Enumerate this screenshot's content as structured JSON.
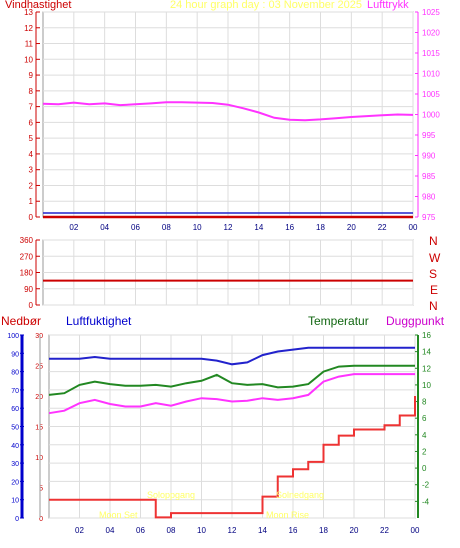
{
  "header": {
    "left_label": "Vindhastighet",
    "center_label": "24 hour graph day : 03 November 2025",
    "right_label": "Lufttrykk"
  },
  "compass": [
    "N",
    "W",
    "S",
    "E",
    "N"
  ],
  "bottom_header": {
    "rain_label": "Nedbør",
    "humidity_label": "Luftfuktighet",
    "temp_label": "Temperatur",
    "dew_label": "Duggpunkt"
  },
  "annotations": {
    "sunrise": "Soloppgang",
    "sunset": "Solnedgang",
    "moonset": "Moon Set",
    "moonrise": "Moon Rise"
  },
  "colors": {
    "background": "#ffffff",
    "border": "#9a9a9a",
    "wind": "#cc0000",
    "pressure": "#ff33ff",
    "humidity": "#2222cc",
    "temperature": "#228822",
    "dew": "#ff33ff",
    "rain": "#ee3333",
    "rain_axis": "#0000cc",
    "annotation": "#ffff66",
    "header_center": "#ffff66"
  },
  "chart_data": [
    {
      "type": "line",
      "name": "wind-pressure",
      "x": [
        0,
        1,
        2,
        3,
        4,
        5,
        6,
        7,
        8,
        9,
        10,
        11,
        12,
        13,
        14,
        15,
        16,
        17,
        18,
        19,
        20,
        21,
        22,
        23,
        24
      ],
      "x_ticks": [
        "02",
        "04",
        "06",
        "08",
        "10",
        "12",
        "14",
        "16",
        "18",
        "20",
        "22",
        "00"
      ],
      "x_tick_values": [
        2,
        4,
        6,
        8,
        10,
        12,
        14,
        16,
        18,
        20,
        22,
        24
      ],
      "y_left": {
        "label": "Vindhastighet",
        "range": [
          0,
          13
        ],
        "ticks": [
          0,
          1,
          2,
          3,
          4,
          5,
          6,
          7,
          8,
          9,
          10,
          11,
          12,
          13
        ]
      },
      "y_right": {
        "label": "Lufttrykk",
        "range": [
          975,
          1025
        ],
        "ticks": [
          975,
          980,
          985,
          990,
          995,
          1000,
          1005,
          1010,
          1015,
          1020,
          1025
        ]
      },
      "series": [
        {
          "name": "Lufttrykk",
          "axis": "right",
          "values": [
            1002.6,
            1002.5,
            1002.9,
            1002.5,
            1002.7,
            1002.3,
            1002.5,
            1002.7,
            1003.0,
            1003.0,
            1002.9,
            1002.8,
            1002.4,
            1001.5,
            1000.5,
            999.2,
            998.7,
            998.6,
            998.8,
            999.1,
            999.4,
            999.6,
            999.8,
            1000.0,
            999.9
          ]
        },
        {
          "name": "Vindhastighet",
          "axis": "left",
          "values": [
            0,
            0,
            0,
            0,
            0,
            0,
            0,
            0,
            0,
            0,
            0,
            0,
            0,
            0,
            0,
            0,
            0,
            0,
            0,
            0,
            0,
            0,
            0,
            0,
            0
          ]
        }
      ],
      "grid": true
    },
    {
      "type": "line",
      "name": "wind-direction",
      "x": [
        0,
        24
      ],
      "y": {
        "range": [
          0,
          360
        ],
        "ticks": [
          0,
          90,
          180,
          270,
          360
        ]
      },
      "series": [
        {
          "name": "Vindretning",
          "values": [
            135,
            135
          ]
        }
      ],
      "grid": true
    },
    {
      "type": "line",
      "name": "humidity-temperature-rain",
      "x": [
        0,
        1,
        2,
        3,
        4,
        5,
        6,
        7,
        8,
        9,
        10,
        11,
        12,
        13,
        14,
        15,
        16,
        17,
        18,
        19,
        20,
        21,
        22,
        23,
        24
      ],
      "y_rain": {
        "label": "Nedbør",
        "range": [
          0,
          30
        ],
        "ticks": [
          0,
          5,
          10,
          15,
          20,
          25,
          30
        ]
      },
      "y_humidity": {
        "label": "Luftfuktighet",
        "range": [
          0,
          100
        ],
        "ticks": [
          0,
          10,
          20,
          30,
          40,
          50,
          60,
          70,
          80,
          90,
          100
        ]
      },
      "y_temp": {
        "label": "Temperatur",
        "range": [
          -6,
          16
        ],
        "ticks": [
          -4,
          -2,
          0,
          2,
          4,
          6,
          8,
          10,
          12,
          14,
          16
        ]
      },
      "series": [
        {
          "name": "Luftfuktighet",
          "axis": "humidity",
          "values": [
            87,
            87,
            87,
            88,
            87,
            87,
            87,
            87,
            87,
            87,
            87,
            86,
            84,
            85,
            89,
            91,
            92,
            93,
            93,
            93,
            93,
            93,
            93,
            93,
            93
          ]
        },
        {
          "name": "Temperatur",
          "axis": "temp",
          "values": [
            8.8,
            9.0,
            10.0,
            10.4,
            10.1,
            9.9,
            9.9,
            10.0,
            9.8,
            10.2,
            10.5,
            11.2,
            10.2,
            10.0,
            10.1,
            9.7,
            9.8,
            10.1,
            11.6,
            12.2,
            12.3,
            12.3,
            12.3,
            12.3,
            12.3
          ]
        },
        {
          "name": "Duggpunkt",
          "axis": "temp",
          "values": [
            6.6,
            6.9,
            7.8,
            8.2,
            7.7,
            7.4,
            7.4,
            7.8,
            7.5,
            8.0,
            8.4,
            8.3,
            8.0,
            8.1,
            8.4,
            8.2,
            8.4,
            8.8,
            10.4,
            11.0,
            11.3,
            11.3,
            11.3,
            11.3,
            11.3
          ]
        },
        {
          "name": "Nedbør",
          "axis": "rain",
          "values": [
            3.0,
            3.0,
            3.0,
            3.0,
            3.0,
            3.0,
            3.0,
            0.1,
            0.8,
            0.8,
            0.8,
            0.8,
            0.8,
            0.8,
            3.5,
            6.8,
            8.0,
            9.2,
            12.0,
            13.5,
            14.5,
            14.5,
            15.2,
            16.8,
            20.0
          ]
        }
      ],
      "grid": true
    }
  ]
}
